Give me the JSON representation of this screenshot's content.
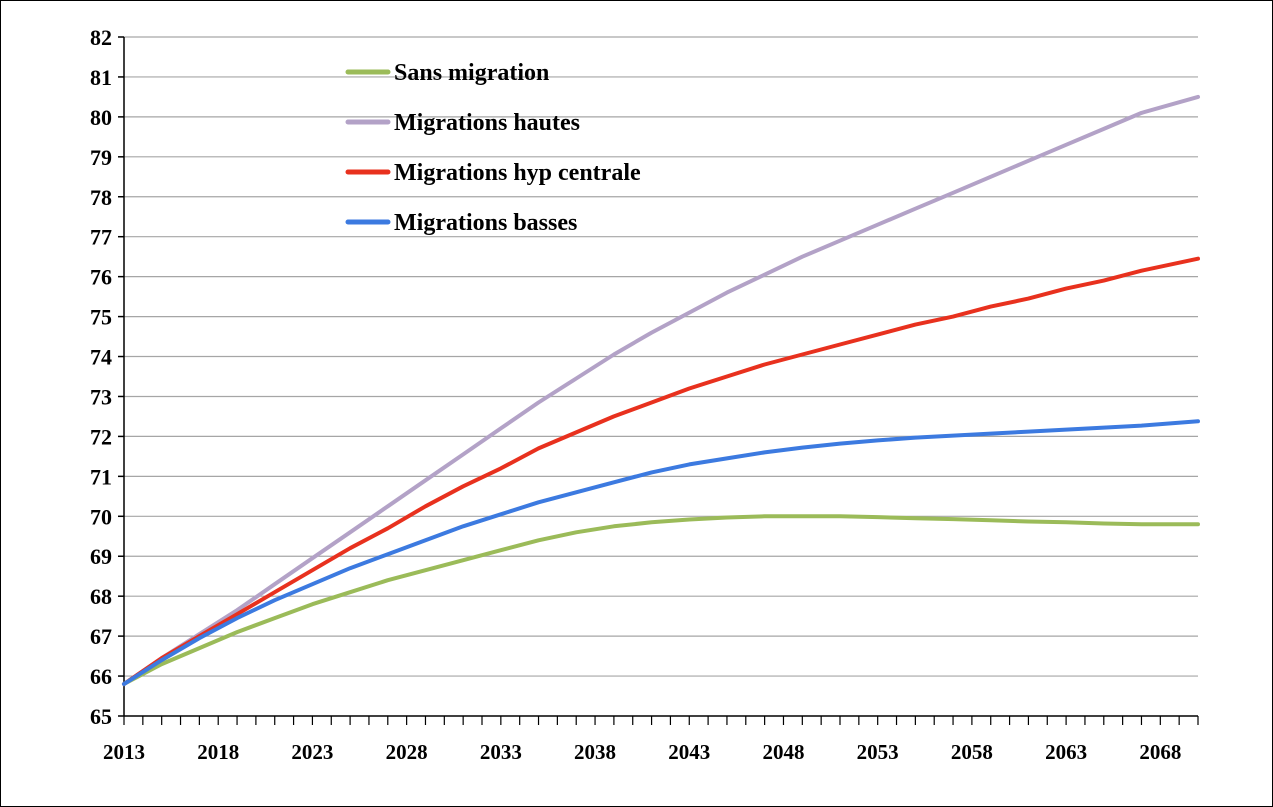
{
  "chart_data": {
    "type": "line",
    "title": "",
    "xlabel": "",
    "ylabel": "",
    "xlim": [
      2013,
      2070
    ],
    "ylim": [
      65,
      82
    ],
    "y_tick_step": 1,
    "y_ticks": [
      "65",
      "66",
      "67",
      "68",
      "69",
      "70",
      "71",
      "72",
      "73",
      "74",
      "75",
      "76",
      "77",
      "78",
      "79",
      "80",
      "81",
      "82"
    ],
    "x_ticks": [
      "2013",
      "2018",
      "2023",
      "2028",
      "2033",
      "2038",
      "2043",
      "2048",
      "2053",
      "2058",
      "2063",
      "2068"
    ],
    "grid": "horizontal",
    "legend_position": "top-left",
    "series": [
      {
        "name": "Sans migration",
        "color": "#9bbb59",
        "x": [
          2013,
          2015,
          2017,
          2019,
          2021,
          2023,
          2025,
          2027,
          2029,
          2031,
          2033,
          2035,
          2037,
          2039,
          2041,
          2043,
          2045,
          2047,
          2049,
          2051,
          2053,
          2055,
          2057,
          2059,
          2061,
          2063,
          2065,
          2067,
          2070
        ],
        "values": [
          65.8,
          66.3,
          66.7,
          67.1,
          67.45,
          67.8,
          68.1,
          68.4,
          68.65,
          68.9,
          69.15,
          69.4,
          69.6,
          69.75,
          69.85,
          69.92,
          69.97,
          70.0,
          70.0,
          70.0,
          69.98,
          69.95,
          69.93,
          69.9,
          69.87,
          69.85,
          69.82,
          69.8,
          69.8
        ]
      },
      {
        "name": "Migrations hautes",
        "color": "#b3a2c7",
        "x": [
          2013,
          2015,
          2017,
          2019,
          2021,
          2023,
          2025,
          2027,
          2029,
          2031,
          2033,
          2035,
          2037,
          2039,
          2041,
          2043,
          2045,
          2047,
          2049,
          2051,
          2053,
          2055,
          2057,
          2059,
          2061,
          2063,
          2065,
          2067,
          2070
        ],
        "values": [
          65.8,
          66.45,
          67.05,
          67.65,
          68.3,
          68.95,
          69.6,
          70.25,
          70.9,
          71.55,
          72.2,
          72.85,
          73.45,
          74.05,
          74.6,
          75.1,
          75.6,
          76.05,
          76.5,
          76.9,
          77.3,
          77.7,
          78.1,
          78.5,
          78.9,
          79.3,
          79.7,
          80.1,
          80.5
        ]
      },
      {
        "name": "Migrations hyp centrale",
        "color": "#e8311e",
        "x": [
          2013,
          2015,
          2017,
          2019,
          2021,
          2023,
          2025,
          2027,
          2029,
          2031,
          2033,
          2035,
          2037,
          2039,
          2041,
          2043,
          2045,
          2047,
          2049,
          2051,
          2053,
          2055,
          2057,
          2059,
          2061,
          2063,
          2065,
          2067,
          2070
        ],
        "values": [
          65.8,
          66.45,
          67.0,
          67.55,
          68.1,
          68.65,
          69.2,
          69.7,
          70.25,
          70.75,
          71.2,
          71.7,
          72.1,
          72.5,
          72.85,
          73.2,
          73.5,
          73.8,
          74.05,
          74.3,
          74.55,
          74.8,
          75.0,
          75.25,
          75.45,
          75.7,
          75.9,
          76.15,
          76.45
        ]
      },
      {
        "name": "Migrations basses",
        "color": "#3c7ae0",
        "x": [
          2013,
          2015,
          2017,
          2019,
          2021,
          2023,
          2025,
          2027,
          2029,
          2031,
          2033,
          2035,
          2037,
          2039,
          2041,
          2043,
          2045,
          2047,
          2049,
          2051,
          2053,
          2055,
          2057,
          2059,
          2061,
          2063,
          2065,
          2067,
          2070
        ],
        "values": [
          65.8,
          66.4,
          66.95,
          67.45,
          67.9,
          68.3,
          68.7,
          69.05,
          69.4,
          69.75,
          70.05,
          70.35,
          70.6,
          70.85,
          71.1,
          71.3,
          71.45,
          71.6,
          71.72,
          71.82,
          71.9,
          71.97,
          72.02,
          72.07,
          72.12,
          72.17,
          72.22,
          72.27,
          72.38
        ]
      }
    ]
  }
}
